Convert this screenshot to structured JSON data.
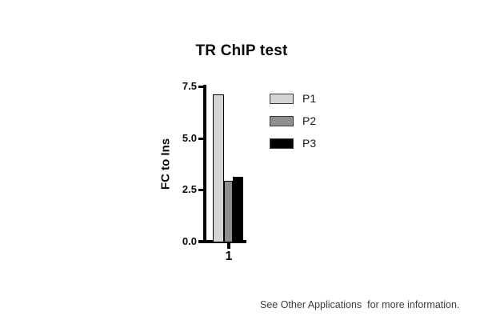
{
  "chart_data": {
    "type": "bar",
    "title": "TR ChIP test",
    "xlabel": "",
    "ylabel": "FC to Ins",
    "categories": [
      "1"
    ],
    "series": [
      {
        "name": "P1",
        "values": [
          7.1
        ],
        "color": "#d4d4d4"
      },
      {
        "name": "P2",
        "values": [
          2.95
        ],
        "color": "#8e8e8e"
      },
      {
        "name": "P3",
        "values": [
          3.15
        ],
        "color": "#000000"
      }
    ],
    "ylim": [
      0,
      7.5
    ],
    "yticks": [
      "0.0",
      "2.5",
      "5.0",
      "7.5"
    ],
    "grid": false,
    "legend_position": "upper right",
    "bar_border_color": "#000000",
    "axis_color": "#000000"
  },
  "footer": {
    "note": "See Other Applications  for more information."
  }
}
